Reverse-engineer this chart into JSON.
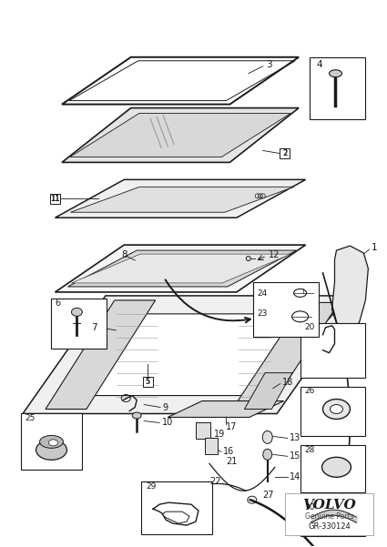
{
  "bg_color": "#ffffff",
  "lc": "#1a1a1a",
  "fig_width": 4.25,
  "fig_height": 6.01,
  "volvo_text": "VOLVO",
  "genuine_text": "Genuine Parts",
  "part_number": "GR-330124"
}
